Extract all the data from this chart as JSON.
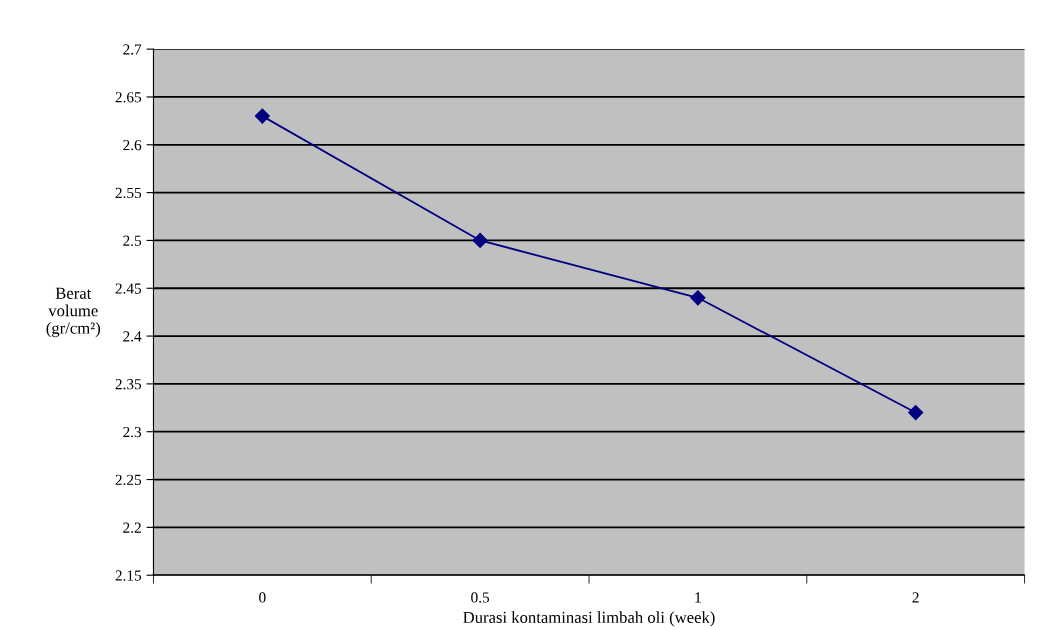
{
  "chart_data": {
    "type": "line",
    "xlabel": "Durasi kontaminasi limbah oli (week)",
    "ylabel": "Berat\nvolume\n(gr/cm²)",
    "categories": [
      "0",
      "0.5",
      "1",
      "2"
    ],
    "series": [
      {
        "color": "#000080",
        "values": [
          2.63,
          2.5,
          2.44,
          2.32
        ]
      }
    ],
    "ylim": [
      2.15,
      2.7
    ],
    "yticks": [
      2.15,
      2.2,
      2.25,
      2.3,
      2.35,
      2.4,
      2.45,
      2.5,
      2.55,
      2.6,
      2.65,
      2.7
    ],
    "grid": "y",
    "marker": "diamond",
    "line_style": "solid"
  }
}
